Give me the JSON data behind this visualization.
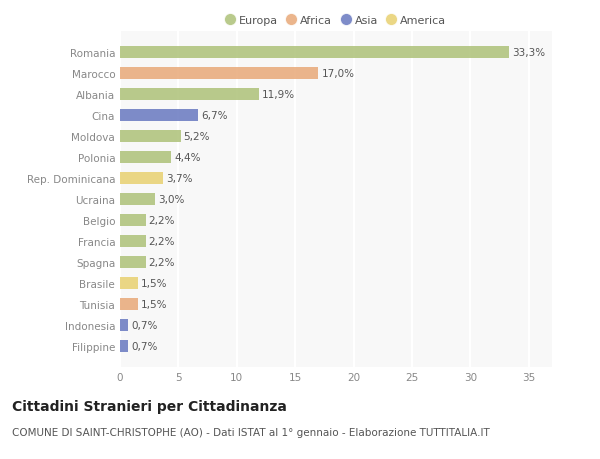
{
  "categories": [
    "Romania",
    "Marocco",
    "Albania",
    "Cina",
    "Moldova",
    "Polonia",
    "Rep. Dominicana",
    "Ucraina",
    "Belgio",
    "Francia",
    "Spagna",
    "Brasile",
    "Tunisia",
    "Indonesia",
    "Filippine"
  ],
  "values": [
    33.3,
    17.0,
    11.9,
    6.7,
    5.2,
    4.4,
    3.7,
    3.0,
    2.2,
    2.2,
    2.2,
    1.5,
    1.5,
    0.7,
    0.7
  ],
  "labels": [
    "33,3%",
    "17,0%",
    "11,9%",
    "6,7%",
    "5,2%",
    "4,4%",
    "3,7%",
    "3,0%",
    "2,2%",
    "2,2%",
    "2,2%",
    "1,5%",
    "1,5%",
    "0,7%",
    "0,7%"
  ],
  "colors": [
    "#adc178",
    "#e8a878",
    "#adc178",
    "#6878c0",
    "#adc178",
    "#adc178",
    "#e8d070",
    "#adc178",
    "#adc178",
    "#adc178",
    "#adc178",
    "#e8d070",
    "#e8a878",
    "#6878c0",
    "#6878c0"
  ],
  "legend_labels": [
    "Europa",
    "Africa",
    "Asia",
    "America"
  ],
  "legend_colors": [
    "#adc178",
    "#e8a878",
    "#6878c0",
    "#e8d070"
  ],
  "title": "Cittadini Stranieri per Cittadinanza",
  "subtitle": "COMUNE DI SAINT-CHRISTOPHE (AO) - Dati ISTAT al 1° gennaio - Elaborazione TUTTITALIA.IT",
  "xlim": [
    0,
    37
  ],
  "xticks": [
    0,
    5,
    10,
    15,
    20,
    25,
    30,
    35
  ],
  "plot_bg": "#f8f8f8",
  "fig_bg": "#ffffff",
  "grid_color": "#ffffff",
  "bar_alpha": 0.85,
  "title_fontsize": 10,
  "subtitle_fontsize": 7.5,
  "label_fontsize": 7.5,
  "tick_fontsize": 7.5,
  "legend_fontsize": 8
}
